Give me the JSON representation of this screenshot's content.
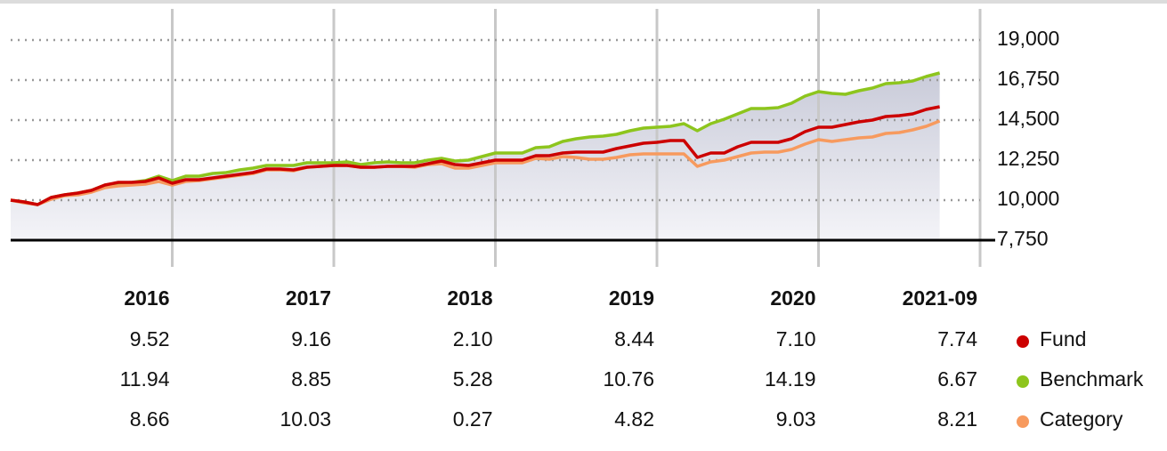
{
  "chart_data": {
    "type": "line",
    "categories": [
      null,
      null,
      null,
      null,
      null,
      null,
      null,
      null,
      null,
      null,
      null,
      null,
      null,
      null,
      null,
      null,
      null,
      null,
      null,
      null,
      null,
      null,
      null,
      null,
      null,
      null,
      null,
      null,
      null,
      null,
      null,
      null,
      null,
      null,
      null,
      null,
      null,
      null,
      null,
      null,
      null,
      null,
      null,
      null,
      null,
      null,
      null,
      null,
      null,
      null,
      null,
      null,
      null,
      null,
      null,
      null,
      null,
      null,
      null,
      null,
      null,
      null,
      null,
      null,
      null,
      null,
      null,
      null,
      null,
      null
    ],
    "series": [
      {
        "name": "Fund",
        "color": "#cc0000",
        "values": [
          10000,
          9900,
          9750,
          10150,
          10300,
          10400,
          10550,
          10850,
          11000,
          11000,
          11050,
          11250,
          10950,
          11150,
          11150,
          11250,
          11350,
          11450,
          11550,
          11750,
          11750,
          11700,
          11850,
          11900,
          11950,
          11950,
          11850,
          11850,
          11900,
          11900,
          11900,
          12050,
          12200,
          12000,
          11950,
          12100,
          12250,
          12250,
          12250,
          12500,
          12500,
          12650,
          12700,
          12700,
          12700,
          12900,
          13050,
          13200,
          13250,
          13350,
          13350,
          12400,
          12650,
          12650,
          13000,
          13250,
          13250,
          13250,
          13450,
          13850,
          14100,
          14100,
          14250,
          14400,
          14500,
          14700,
          14750,
          14850,
          15100,
          15250
        ],
        "annual_returns": [
          "9.52",
          "9.16",
          "2.10",
          "8.44",
          "7.10",
          "7.74"
        ]
      },
      {
        "name": "Benchmark",
        "color": "#8dc51d",
        "values": [
          10000,
          9900,
          9750,
          10150,
          10300,
          10400,
          10550,
          10850,
          10950,
          11000,
          11100,
          11350,
          11100,
          11350,
          11350,
          11500,
          11550,
          11700,
          11800,
          11950,
          11950,
          11950,
          12100,
          12100,
          12100,
          12150,
          12000,
          12100,
          12150,
          12100,
          12100,
          12250,
          12350,
          12200,
          12250,
          12450,
          12650,
          12650,
          12650,
          12950,
          13000,
          13300,
          13450,
          13550,
          13600,
          13700,
          13900,
          14050,
          14100,
          14150,
          14300,
          13900,
          14300,
          14550,
          14850,
          15150,
          15150,
          15200,
          15450,
          15850,
          16100,
          16000,
          15950,
          16150,
          16300,
          16550,
          16600,
          16700,
          16950,
          17150
        ],
        "annual_returns": [
          "11.94",
          "8.85",
          "5.28",
          "10.76",
          "14.19",
          "6.67"
        ]
      },
      {
        "name": "Category",
        "color": "#f79a5e",
        "values": [
          10000,
          9850,
          9750,
          10050,
          10250,
          10300,
          10450,
          10700,
          10800,
          10850,
          10900,
          11050,
          10850,
          11050,
          11100,
          11200,
          11300,
          11400,
          11500,
          11700,
          11700,
          11650,
          11850,
          11900,
          11950,
          11950,
          11850,
          11850,
          11900,
          11900,
          11850,
          12000,
          12050,
          11800,
          11800,
          11950,
          12100,
          12100,
          12100,
          12350,
          12300,
          12450,
          12400,
          12300,
          12300,
          12400,
          12550,
          12600,
          12600,
          12600,
          12600,
          11900,
          12150,
          12250,
          12450,
          12650,
          12700,
          12700,
          12850,
          13150,
          13400,
          13300,
          13400,
          13500,
          13550,
          13750,
          13800,
          13950,
          14150,
          14450
        ],
        "annual_returns": [
          "8.66",
          "10.03",
          "0.27",
          "4.82",
          "9.03",
          "8.21"
        ]
      }
    ],
    "periods": [
      "2016",
      "2017",
      "2018",
      "2019",
      "2020",
      "2021-09"
    ],
    "ylim": [
      7750,
      19000
    ],
    "yticks": [
      {
        "value": 7750,
        "label": "7,750"
      },
      {
        "value": 10000,
        "label": "10,000"
      },
      {
        "value": 12250,
        "label": "12,250"
      },
      {
        "value": 14500,
        "label": "14,500"
      },
      {
        "value": 16750,
        "label": "16,750"
      },
      {
        "value": 19000,
        "label": "19,000"
      }
    ],
    "grid": true
  }
}
